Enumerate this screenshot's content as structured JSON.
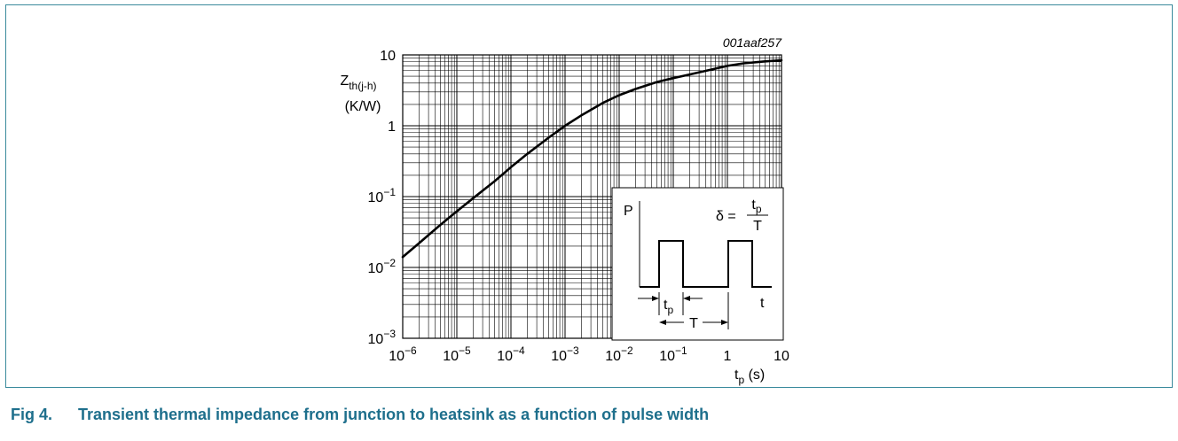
{
  "figure": {
    "id_label": "001aaf257",
    "caption_number": "Fig 4.",
    "caption_text": "Transient thermal impedance from junction to heatsink as a function of pulse width"
  },
  "chart_data": {
    "type": "line",
    "x_scale": "log",
    "y_scale": "log",
    "xlabel": {
      "base": "t",
      "sub": "p",
      "unit": " (s)"
    },
    "ylabel": {
      "base": "Z",
      "sub": "th(j-h)",
      "unit": "(K/W)"
    },
    "xlim": [
      1e-06,
      10
    ],
    "ylim": [
      0.001,
      10
    ],
    "grid": true,
    "x_ticks": [
      {
        "value": 1e-06,
        "mant": "10",
        "exp": "−6"
      },
      {
        "value": 1e-05,
        "mant": "10",
        "exp": "−5"
      },
      {
        "value": 0.0001,
        "mant": "10",
        "exp": "−4"
      },
      {
        "value": 0.001,
        "mant": "10",
        "exp": "−3"
      },
      {
        "value": 0.01,
        "mant": "10",
        "exp": "−2"
      },
      {
        "value": 0.1,
        "mant": "10",
        "exp": "−1"
      },
      {
        "value": 1,
        "mant": "1",
        "exp": ""
      },
      {
        "value": 10,
        "mant": "10",
        "exp": ""
      }
    ],
    "y_ticks": [
      {
        "value": 10,
        "mant": "10",
        "exp": ""
      },
      {
        "value": 1,
        "mant": "1",
        "exp": ""
      },
      {
        "value": 0.1,
        "mant": "10",
        "exp": "−1"
      },
      {
        "value": 0.01,
        "mant": "10",
        "exp": "−2"
      },
      {
        "value": 0.001,
        "mant": "10",
        "exp": "−3"
      }
    ],
    "series": [
      {
        "x": [
          1e-06,
          2e-06,
          5e-06,
          1e-05,
          2e-05,
          5e-05,
          0.0001,
          0.0002,
          0.0005,
          0.001,
          0.002,
          0.005,
          0.01,
          0.02,
          0.05,
          0.1,
          0.2,
          0.5,
          1,
          2,
          5,
          10
        ],
        "y": [
          0.014,
          0.022,
          0.04,
          0.062,
          0.095,
          0.165,
          0.26,
          0.4,
          0.68,
          1.0,
          1.4,
          2.1,
          2.7,
          3.3,
          4.15,
          4.7,
          5.3,
          6.2,
          7.0,
          7.6,
          8.1,
          8.4
        ]
      }
    ],
    "inset": {
      "p_label": "P",
      "t_label": "t",
      "delta_lhs": "δ =",
      "delta_num_base": "t",
      "delta_num_sub": "p",
      "delta_den": "T",
      "tp_base": "t",
      "tp_sub": "p",
      "period_label": "T"
    }
  }
}
